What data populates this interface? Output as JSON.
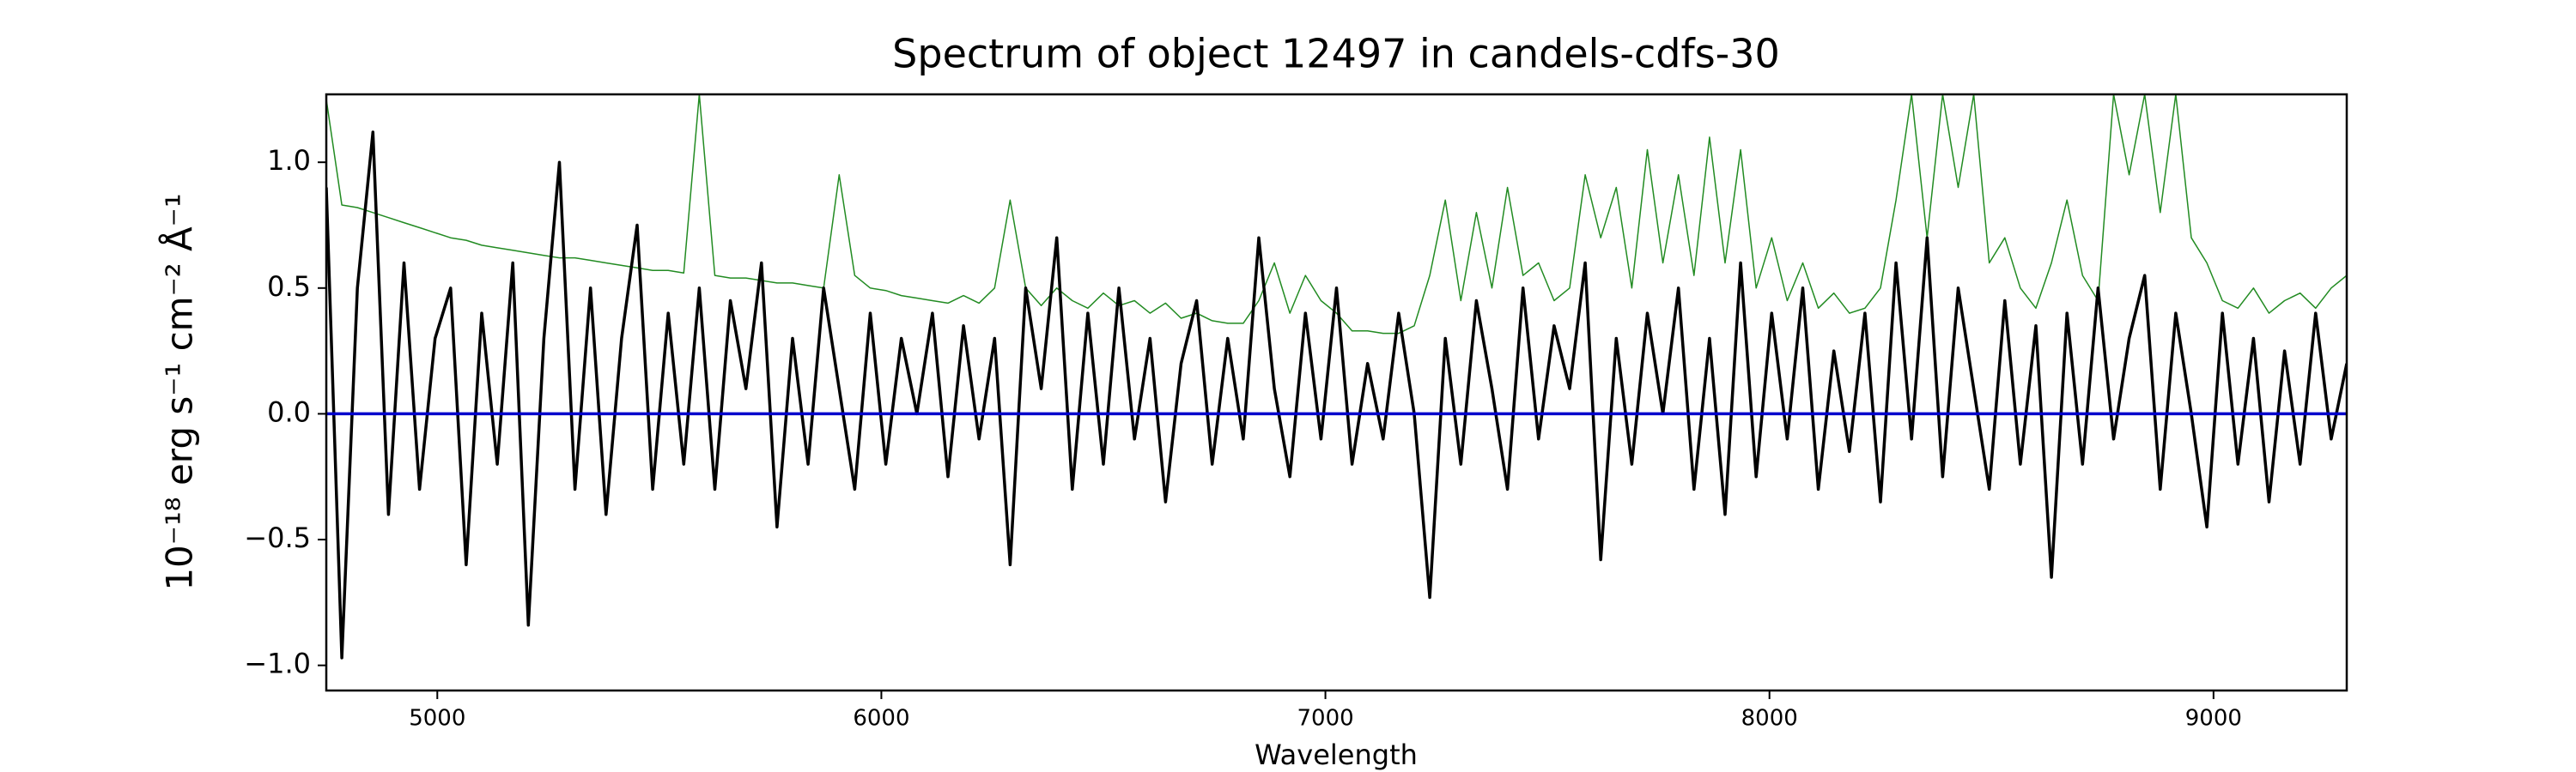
{
  "chart_data": {
    "type": "line",
    "title": "Spectrum of object 12497 in candels-cdfs-30",
    "xlabel": "Wavelength",
    "ylabel": "10⁻¹⁸ erg s⁻¹ cm⁻² Å⁻¹",
    "xlim": [
      4750,
      9300
    ],
    "ylim": [
      -1.1,
      1.27
    ],
    "xticks": [
      5000,
      6000,
      7000,
      8000,
      9000
    ],
    "yticks": [
      {
        "value": -1.0,
        "label": "−1.0"
      },
      {
        "value": -0.5,
        "label": "−0.5"
      },
      {
        "value": 0.0,
        "label": "0.0"
      },
      {
        "value": 0.5,
        "label": "0.5"
      },
      {
        "value": 1.0,
        "label": "1.0"
      }
    ],
    "x": [
      4750,
      4785,
      4820,
      4855,
      4890,
      4925,
      4960,
      4995,
      5030,
      5065,
      5100,
      5135,
      5170,
      5205,
      5240,
      5275,
      5310,
      5345,
      5380,
      5415,
      5450,
      5485,
      5520,
      5555,
      5590,
      5625,
      5660,
      5695,
      5730,
      5765,
      5800,
      5835,
      5870,
      5905,
      5940,
      5975,
      6010,
      6045,
      6080,
      6115,
      6150,
      6185,
      6220,
      6255,
      6290,
      6325,
      6360,
      6395,
      6430,
      6465,
      6500,
      6535,
      6570,
      6605,
      6640,
      6675,
      6710,
      6745,
      6780,
      6815,
      6850,
      6885,
      6920,
      6955,
      6990,
      7025,
      7060,
      7095,
      7130,
      7165,
      7200,
      7235,
      7270,
      7305,
      7340,
      7375,
      7410,
      7445,
      7480,
      7515,
      7550,
      7585,
      7620,
      7655,
      7690,
      7725,
      7760,
      7795,
      7830,
      7865,
      7900,
      7935,
      7970,
      8005,
      8040,
      8075,
      8110,
      8145,
      8180,
      8215,
      8250,
      8285,
      8320,
      8355,
      8390,
      8425,
      8460,
      8495,
      8530,
      8565,
      8600,
      8635,
      8670,
      8705,
      8740,
      8775,
      8810,
      8845,
      8880,
      8915,
      8950,
      8985,
      9020,
      9055,
      9090,
      9125,
      9160,
      9195,
      9230,
      9265,
      9300
    ],
    "series": [
      {
        "color": "#228b22",
        "values": [
          1.25,
          0.83,
          0.82,
          0.8,
          0.78,
          0.76,
          0.74,
          0.72,
          0.7,
          0.69,
          0.67,
          0.66,
          0.65,
          0.64,
          0.63,
          0.62,
          0.62,
          0.61,
          0.6,
          0.59,
          0.58,
          0.57,
          0.57,
          0.56,
          1.27,
          0.55,
          0.54,
          0.54,
          0.53,
          0.52,
          0.52,
          0.51,
          0.5,
          0.95,
          0.55,
          0.5,
          0.49,
          0.47,
          0.46,
          0.45,
          0.44,
          0.47,
          0.44,
          0.5,
          0.85,
          0.5,
          0.43,
          0.5,
          0.45,
          0.42,
          0.48,
          0.43,
          0.45,
          0.4,
          0.44,
          0.38,
          0.4,
          0.37,
          0.36,
          0.36,
          0.45,
          0.6,
          0.4,
          0.55,
          0.45,
          0.4,
          0.33,
          0.33,
          0.32,
          0.32,
          0.35,
          0.55,
          0.85,
          0.45,
          0.8,
          0.5,
          0.9,
          0.55,
          0.6,
          0.45,
          0.5,
          0.95,
          0.7,
          0.9,
          0.5,
          1.05,
          0.6,
          0.95,
          0.55,
          1.1,
          0.6,
          1.05,
          0.5,
          0.7,
          0.45,
          0.6,
          0.42,
          0.48,
          0.4,
          0.42,
          0.5,
          0.85,
          1.27,
          0.7,
          1.27,
          0.9,
          1.27,
          0.6,
          0.7,
          0.5,
          0.42,
          0.6,
          0.85,
          0.55,
          0.45,
          1.27,
          0.95,
          1.27,
          0.8,
          1.27,
          0.7,
          0.6,
          0.45,
          0.42,
          0.5,
          0.4,
          0.45,
          0.48,
          0.42,
          0.5,
          0.55
        ]
      },
      {
        "color": "#000000",
        "values": [
          0.9,
          -0.97,
          0.5,
          1.12,
          -0.4,
          0.6,
          -0.3,
          0.3,
          0.5,
          -0.6,
          0.4,
          -0.2,
          0.6,
          -0.84,
          0.3,
          1.0,
          -0.3,
          0.5,
          -0.4,
          0.3,
          0.75,
          -0.3,
          0.4,
          -0.2,
          0.5,
          -0.3,
          0.45,
          0.1,
          0.6,
          -0.45,
          0.3,
          -0.2,
          0.5,
          0.1,
          -0.3,
          0.4,
          -0.2,
          0.3,
          0.0,
          0.4,
          -0.25,
          0.35,
          -0.1,
          0.3,
          -0.6,
          0.5,
          0.1,
          0.7,
          -0.3,
          0.4,
          -0.2,
          0.5,
          -0.1,
          0.3,
          -0.35,
          0.2,
          0.45,
          -0.2,
          0.3,
          -0.1,
          0.7,
          0.1,
          -0.25,
          0.4,
          -0.1,
          0.5,
          -0.2,
          0.2,
          -0.1,
          0.4,
          0.0,
          -0.73,
          0.3,
          -0.2,
          0.45,
          0.1,
          -0.3,
          0.5,
          -0.1,
          0.35,
          0.1,
          0.6,
          -0.58,
          0.3,
          -0.2,
          0.4,
          0.0,
          0.5,
          -0.3,
          0.3,
          -0.4,
          0.6,
          -0.25,
          0.4,
          -0.1,
          0.5,
          -0.3,
          0.25,
          -0.15,
          0.4,
          -0.35,
          0.6,
          -0.1,
          0.7,
          -0.25,
          0.5,
          0.1,
          -0.3,
          0.45,
          -0.2,
          0.35,
          -0.65,
          0.4,
          -0.2,
          0.5,
          -0.1,
          0.3,
          0.55,
          -0.3,
          0.4,
          0.0,
          -0.45,
          0.4,
          -0.2,
          0.3,
          -0.35,
          0.25,
          -0.2,
          0.4,
          -0.1,
          0.2
        ]
      },
      {
        "color": "#0000cc",
        "x": [
          4750,
          9300
        ],
        "values": [
          0,
          0
        ]
      }
    ]
  }
}
